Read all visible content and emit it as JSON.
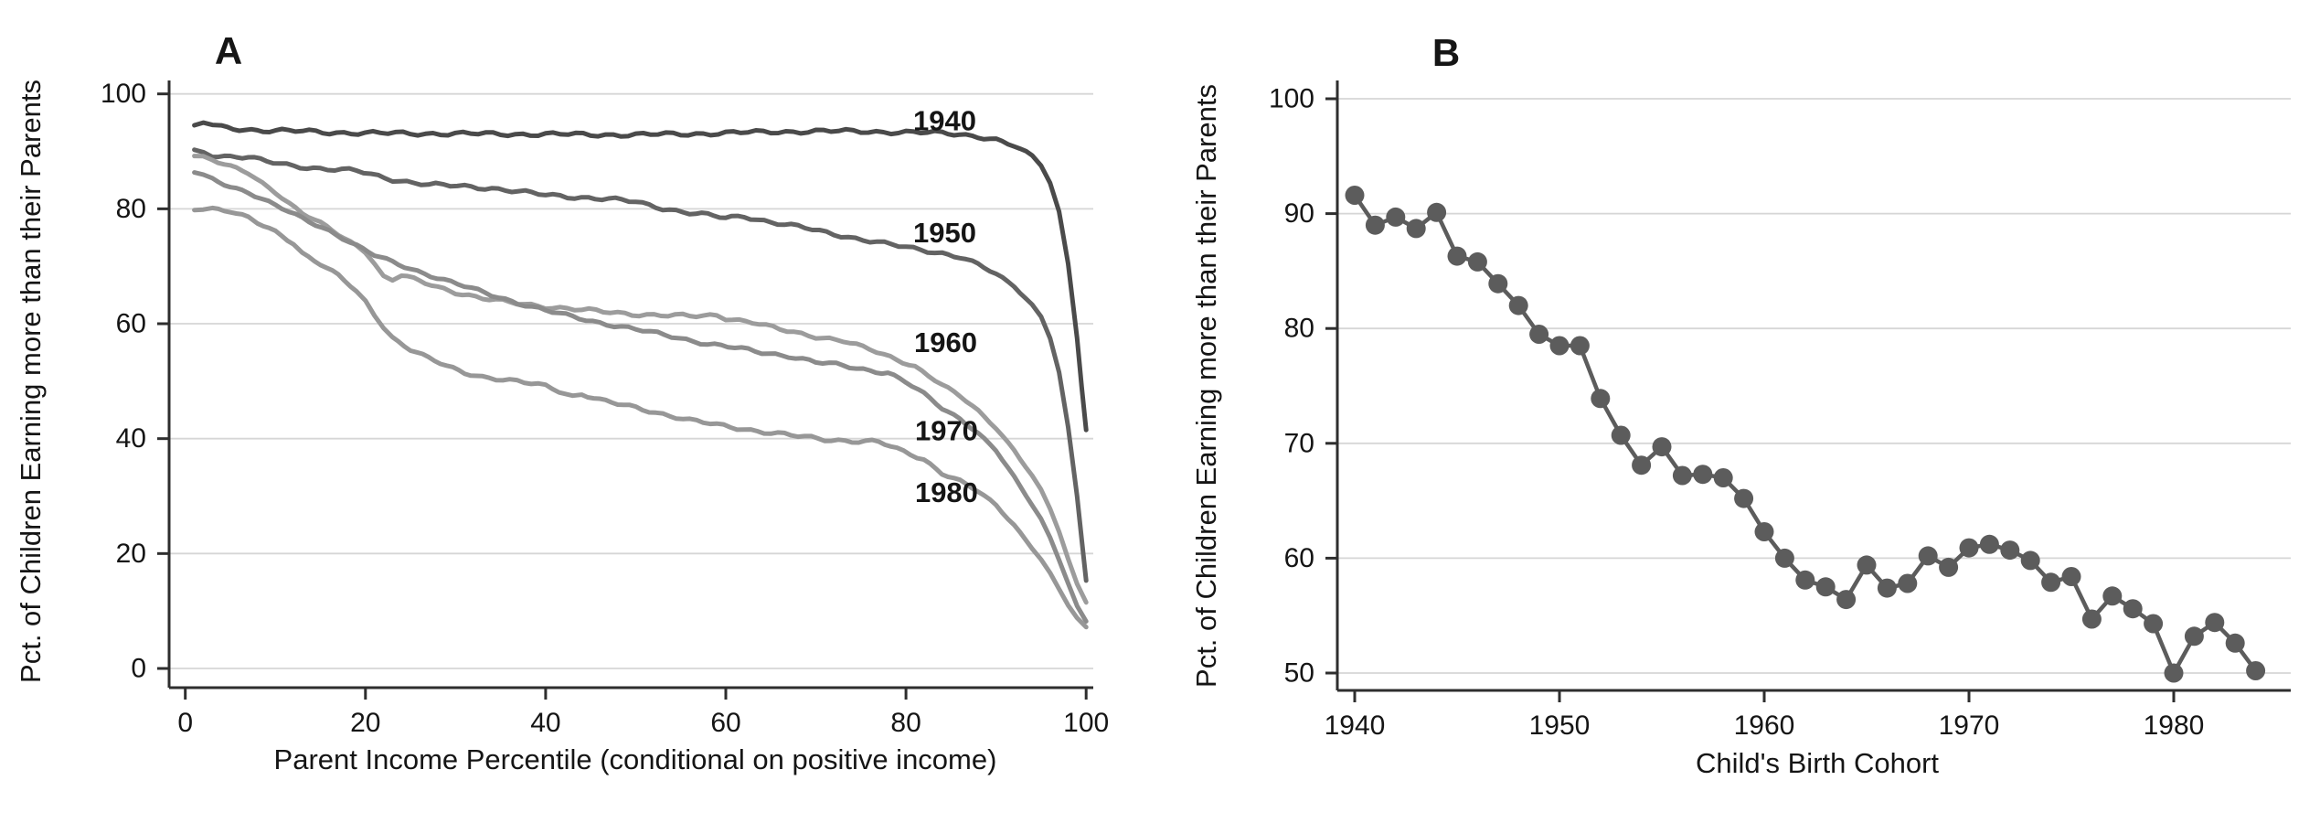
{
  "figure": {
    "background": "#ffffff"
  },
  "panels": [
    {
      "label": "A",
      "ylabel": "Pct. of Children Earning more than their Parents",
      "xlabel": "Parent Income Percentile (conditional on positive income)"
    },
    {
      "label": "B",
      "ylabel": "Pct. of Children Earning more than their Parents",
      "xlabel": "Child's Birth Cohort"
    }
  ],
  "chart_data": [
    {
      "panel": "A",
      "type": "line",
      "title": "",
      "xlabel": "Parent Income Percentile (conditional on positive income)",
      "ylabel": "Pct. of Children Earning more than their Parents",
      "x_ticks": [
        0,
        20,
        40,
        60,
        80,
        100
      ],
      "y_ticks": [
        0,
        20,
        40,
        60,
        80,
        100
      ],
      "xlim": [
        -2,
        101
      ],
      "ylim": [
        -3,
        105
      ],
      "grid": "horizontal",
      "legend_position": "inline-labels",
      "series": [
        {
          "name": "1940",
          "color": "#4a4a4a",
          "label_x": 84.3,
          "label_y": 95.3,
          "points": [
            [
              1,
              94.3
            ],
            [
              2,
              95.0
            ],
            [
              3,
              94.6
            ],
            [
              4,
              94.2
            ],
            [
              6,
              93.9
            ],
            [
              8,
              93.7
            ],
            [
              10,
              93.6
            ],
            [
              13,
              93.5
            ],
            [
              16,
              93.3
            ],
            [
              20,
              93.2
            ],
            [
              25,
              93.1
            ],
            [
              30,
              93.1
            ],
            [
              35,
              93.0
            ],
            [
              40,
              93.0
            ],
            [
              45,
              92.9
            ],
            [
              50,
              92.9
            ],
            [
              55,
              93.0
            ],
            [
              60,
              93.2
            ],
            [
              65,
              93.4
            ],
            [
              70,
              93.5
            ],
            [
              75,
              93.5
            ],
            [
              80,
              93.3
            ],
            [
              84,
              93.2
            ],
            [
              86,
              93.0
            ],
            [
              88,
              92.6
            ],
            [
              90,
              92.0
            ],
            [
              92,
              90.9
            ],
            [
              94,
              89.2
            ],
            [
              95,
              87.6
            ],
            [
              96,
              84.5
            ],
            [
              97,
              79.5
            ],
            [
              98,
              70.5
            ],
            [
              99,
              57.5
            ],
            [
              99.5,
              49.0
            ],
            [
              100,
              41.5
            ]
          ]
        },
        {
          "name": "1950",
          "color": "#636363",
          "label_x": 84.3,
          "label_y": 75.8,
          "points": [
            [
              1,
              90.1
            ],
            [
              2,
              89.8
            ],
            [
              3,
              89.4
            ],
            [
              5,
              89.1
            ],
            [
              7,
              89.0
            ],
            [
              9,
              88.2
            ],
            [
              12,
              87.5
            ],
            [
              15,
              87.0
            ],
            [
              19,
              86.6
            ],
            [
              23,
              85.1
            ],
            [
              27,
              84.2
            ],
            [
              31,
              83.9
            ],
            [
              34,
              83.6
            ],
            [
              37,
              83.0
            ],
            [
              40,
              82.4
            ],
            [
              44,
              82.0
            ],
            [
              47,
              81.7
            ],
            [
              50,
              81.2
            ],
            [
              53,
              80.1
            ],
            [
              56,
              79.3
            ],
            [
              58,
              78.9
            ],
            [
              60,
              78.4
            ],
            [
              62,
              78.7
            ],
            [
              65,
              77.7
            ],
            [
              68,
              76.9
            ],
            [
              72,
              75.6
            ],
            [
              76,
              74.4
            ],
            [
              80,
              73.3
            ],
            [
              84,
              72.3
            ],
            [
              86,
              71.6
            ],
            [
              88,
              70.3
            ],
            [
              90,
              68.6
            ],
            [
              92,
              66.6
            ],
            [
              94,
              63.3
            ],
            [
              95,
              61.3
            ],
            [
              96,
              57.5
            ],
            [
              97,
              51.5
            ],
            [
              98,
              42.0
            ],
            [
              99,
              30.0
            ],
            [
              99.5,
              22.5
            ],
            [
              100,
              15.3
            ]
          ]
        },
        {
          "name": "1960",
          "color": "#9c9c9c",
          "label_x": 84.4,
          "label_y": 56.7,
          "points": [
            [
              1,
              89.4
            ],
            [
              2,
              89.0
            ],
            [
              3,
              88.5
            ],
            [
              5,
              87.3
            ],
            [
              7,
              86.2
            ],
            [
              10,
              82.9
            ],
            [
              13,
              79.2
            ],
            [
              15,
              77.5
            ],
            [
              17,
              75.5
            ],
            [
              19,
              73.6
            ],
            [
              20,
              72.5
            ],
            [
              21,
              70.5
            ],
            [
              22,
              68.2
            ],
            [
              23,
              67.6
            ],
            [
              24,
              68.4
            ],
            [
              26,
              67.4
            ],
            [
              28,
              66.4
            ],
            [
              30,
              65.5
            ],
            [
              33,
              64.4
            ],
            [
              36,
              63.7
            ],
            [
              40,
              63.0
            ],
            [
              44,
              62.4
            ],
            [
              48,
              61.9
            ],
            [
              52,
              61.5
            ],
            [
              56,
              61.3
            ],
            [
              59,
              61.5
            ],
            [
              60,
              61.0
            ],
            [
              63,
              60.2
            ],
            [
              66,
              59.0
            ],
            [
              70,
              57.8
            ],
            [
              73,
              57.0
            ],
            [
              76,
              55.5
            ],
            [
              79,
              53.8
            ],
            [
              81,
              52.6
            ],
            [
              84,
              49.3
            ],
            [
              86,
              47.4
            ],
            [
              88,
              44.9
            ],
            [
              90,
              41.9
            ],
            [
              92,
              38.0
            ],
            [
              94,
              33.5
            ],
            [
              95,
              31.0
            ],
            [
              96,
              27.8
            ],
            [
              97,
              23.8
            ],
            [
              98,
              19.0
            ],
            [
              99,
              14.8
            ],
            [
              100,
              11.5
            ]
          ]
        },
        {
          "name": "1970",
          "color": "#8b8b8b",
          "label_x": 84.5,
          "label_y": 41.4,
          "points": [
            [
              1,
              86.4
            ],
            [
              2,
              85.8
            ],
            [
              3,
              85.1
            ],
            [
              5,
              83.9
            ],
            [
              7,
              82.9
            ],
            [
              10,
              80.6
            ],
            [
              13,
              78.3
            ],
            [
              16,
              76.2
            ],
            [
              19,
              73.6
            ],
            [
              21,
              71.9
            ],
            [
              23,
              70.7
            ],
            [
              25,
              69.6
            ],
            [
              28,
              68.0
            ],
            [
              31,
              66.5
            ],
            [
              34,
              65.0
            ],
            [
              37,
              63.6
            ],
            [
              40,
              62.3
            ],
            [
              43,
              61.2
            ],
            [
              46,
              60.2
            ],
            [
              50,
              59.0
            ],
            [
              54,
              57.8
            ],
            [
              58,
              56.5
            ],
            [
              61,
              55.8
            ],
            [
              64,
              55.0
            ],
            [
              67,
              54.4
            ],
            [
              70,
              53.3
            ],
            [
              73,
              52.7
            ],
            [
              76,
              51.9
            ],
            [
              78,
              51.5
            ],
            [
              80,
              49.8
            ],
            [
              82,
              47.8
            ],
            [
              84,
              45.3
            ],
            [
              86,
              43.5
            ],
            [
              88,
              41.0
            ],
            [
              90,
              37.9
            ],
            [
              92,
              33.3
            ],
            [
              94,
              28.5
            ],
            [
              95,
              26.0
            ],
            [
              96,
              22.8
            ],
            [
              97,
              19.0
            ],
            [
              98,
              14.8
            ],
            [
              99,
              10.8
            ],
            [
              100,
              8.2
            ]
          ]
        },
        {
          "name": "1980",
          "color": "#979797",
          "label_x": 84.5,
          "label_y": 30.6,
          "points": [
            [
              1,
              79.9
            ],
            [
              2,
              80.2
            ],
            [
              3,
              80.1
            ],
            [
              5,
              79.6
            ],
            [
              7,
              78.4
            ],
            [
              8,
              77.5
            ],
            [
              10,
              76.0
            ],
            [
              12,
              74.0
            ],
            [
              13,
              72.3
            ],
            [
              15,
              70.4
            ],
            [
              17,
              68.4
            ],
            [
              19,
              65.6
            ],
            [
              20,
              63.9
            ],
            [
              21,
              61.5
            ],
            [
              22,
              59.4
            ],
            [
              23,
              57.6
            ],
            [
              25,
              55.5
            ],
            [
              27,
              54.0
            ],
            [
              29,
              52.6
            ],
            [
              31,
              51.5
            ],
            [
              33,
              50.8
            ],
            [
              36,
              50.1
            ],
            [
              40,
              49.2
            ],
            [
              43,
              47.4
            ],
            [
              44,
              47.8
            ],
            [
              46,
              46.7
            ],
            [
              48,
              46.0
            ],
            [
              50,
              45.4
            ],
            [
              53,
              44.3
            ],
            [
              56,
              43.2
            ],
            [
              59,
              42.4
            ],
            [
              62,
              41.7
            ],
            [
              65,
              41.0
            ],
            [
              68,
              40.4
            ],
            [
              71,
              39.9
            ],
            [
              74,
              39.6
            ],
            [
              77,
              39.4
            ],
            [
              79,
              38.2
            ],
            [
              82,
              36.4
            ],
            [
              84,
              34.0
            ],
            [
              86,
              32.6
            ],
            [
              88,
              30.8
            ],
            [
              90,
              28.4
            ],
            [
              92,
              25.0
            ],
            [
              94,
              21.0
            ],
            [
              95,
              19.0
            ],
            [
              96,
              16.5
            ],
            [
              97,
              13.8
            ],
            [
              98,
              11.0
            ],
            [
              99,
              8.6
            ],
            [
              100,
              7.2
            ]
          ]
        }
      ]
    },
    {
      "panel": "B",
      "type": "scatter",
      "title": "",
      "xlabel": "Child's Birth Cohort",
      "ylabel": "Pct. of Children Earning more than their Parents",
      "x_ticks": [
        1940,
        1950,
        1960,
        1970,
        1980
      ],
      "y_ticks": [
        50,
        60,
        70,
        80,
        90,
        100
      ],
      "xlim": [
        1939.2,
        1985
      ],
      "ylim": [
        48.5,
        101.5
      ],
      "grid": "horizontal",
      "marker": "circle",
      "connected": true,
      "color": "#5c5c5c",
      "years": [
        1940,
        1941,
        1942,
        1943,
        1944,
        1945,
        1946,
        1947,
        1948,
        1949,
        1950,
        1951,
        1952,
        1953,
        1954,
        1955,
        1956,
        1957,
        1958,
        1959,
        1960,
        1961,
        1962,
        1963,
        1964,
        1965,
        1966,
        1967,
        1968,
        1969,
        1970,
        1971,
        1972,
        1973,
        1974,
        1975,
        1976,
        1977,
        1978,
        1979,
        1980,
        1981,
        1982,
        1983,
        1984
      ],
      "values": [
        91.6,
        89.0,
        89.7,
        88.7,
        90.1,
        86.3,
        85.8,
        83.9,
        82.0,
        79.5,
        78.5,
        78.5,
        73.9,
        70.7,
        68.1,
        69.7,
        67.2,
        67.3,
        67.0,
        65.2,
        62.3,
        60.0,
        58.1,
        57.5,
        56.4,
        59.4,
        57.4,
        57.8,
        60.2,
        59.2,
        60.9,
        61.2,
        60.7,
        59.8,
        57.9,
        58.4,
        54.7,
        56.7,
        55.6,
        54.3,
        50.0,
        53.2,
        54.4,
        52.6,
        50.2
      ]
    }
  ],
  "style": {
    "grid_color": "#d6d6d6",
    "axis_color": "#2e2e2e",
    "marker_radius": 10.5
  }
}
